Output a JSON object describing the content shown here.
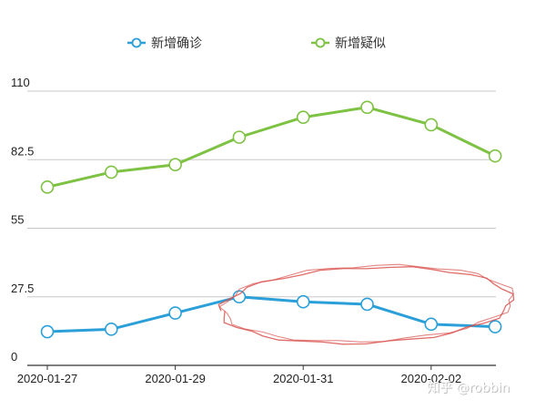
{
  "chart_data": {
    "type": "line",
    "title": "",
    "xlabel": "",
    "ylabel": "",
    "x": [
      "2020-01-27",
      "2020-01-28",
      "2020-01-29",
      "2020-01-30",
      "2020-01-31",
      "2020-02-01",
      "2020-02-02",
      "2020-02-03"
    ],
    "x_tick_labels": [
      "2020-01-27",
      "2020-01-29",
      "2020-01-31",
      "2020-02-02"
    ],
    "y_ticks": [
      "0",
      "27.5",
      "55",
      "82.5",
      "110"
    ],
    "ylim": [
      0,
      110
    ],
    "grid": true,
    "legend_position": "top-center",
    "series": [
      {
        "name": "新增确诊",
        "color": "#2b9fd8",
        "values": [
          13.5,
          14.5,
          21,
          27.5,
          25.5,
          24.5,
          16.5,
          15.5
        ]
      },
      {
        "name": "新增疑似",
        "color": "#7dc242",
        "values": [
          71.5,
          77.5,
          80.5,
          91.5,
          99.5,
          103.5,
          96.5,
          84
        ]
      }
    ],
    "annotation": {
      "type": "hand-drawn ellipse",
      "color": "#d9534f",
      "note_x_range": [
        "2020-01-30",
        "2020-02-03"
      ],
      "target_series": "新增确诊"
    }
  },
  "watermark": {
    "text": "知乎 @robbin"
  }
}
